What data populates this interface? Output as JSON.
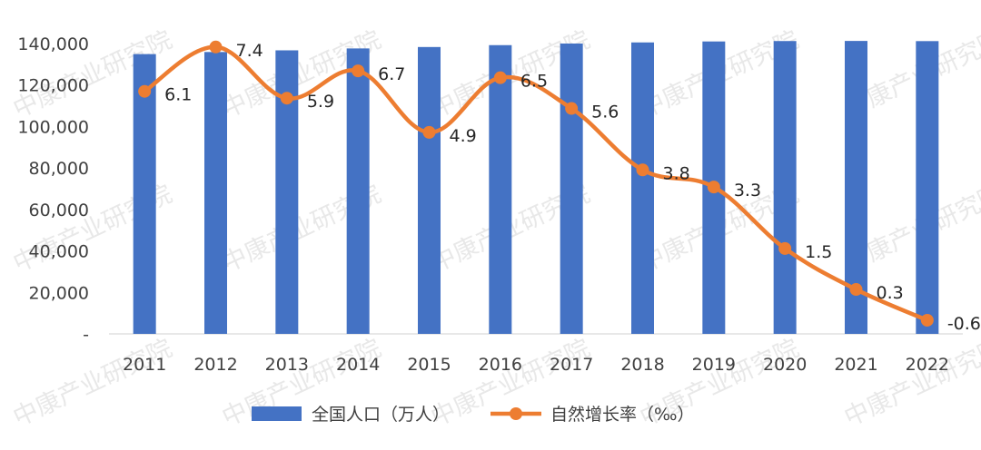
{
  "watermark": "中康产业研究院",
  "colors": {
    "bar": "#4472C4",
    "line": "#ED7D31",
    "text": "#404040",
    "axis": "#D9D9D9"
  },
  "chart_data": {
    "type": "bar",
    "categories": [
      "2011",
      "2012",
      "2013",
      "2014",
      "2015",
      "2016",
      "2017",
      "2018",
      "2019",
      "2020",
      "2021",
      "2022"
    ],
    "y_ticks": [
      "-",
      "20,000",
      "40,000",
      "60,000",
      "80,000",
      "100,000",
      "120,000",
      "140,000"
    ],
    "ylim": [
      0,
      140000
    ],
    "grid": false,
    "legend_position": "bottom",
    "series": [
      {
        "name": "全国人口（万人）",
        "type": "bar",
        "axis": "left",
        "values": [
          134916,
          135922,
          136726,
          137646,
          138326,
          139232,
          140011,
          140541,
          141008,
          141212,
          141260,
          141175
        ]
      },
      {
        "name": "自然增长率（‰）",
        "type": "line",
        "axis": "right",
        "smooth": true,
        "values": [
          6.1,
          7.4,
          5.9,
          6.7,
          4.9,
          6.5,
          5.6,
          3.8,
          3.3,
          1.5,
          0.3,
          -0.6
        ],
        "labels": [
          "6.1",
          "7.4",
          "5.9",
          "6.7",
          "4.9",
          "6.5",
          "5.6",
          "3.8",
          "3.3",
          "1.5",
          "0.3",
          "-0.6"
        ]
      }
    ],
    "secondary_ylim": [
      -1,
      7.5
    ]
  }
}
